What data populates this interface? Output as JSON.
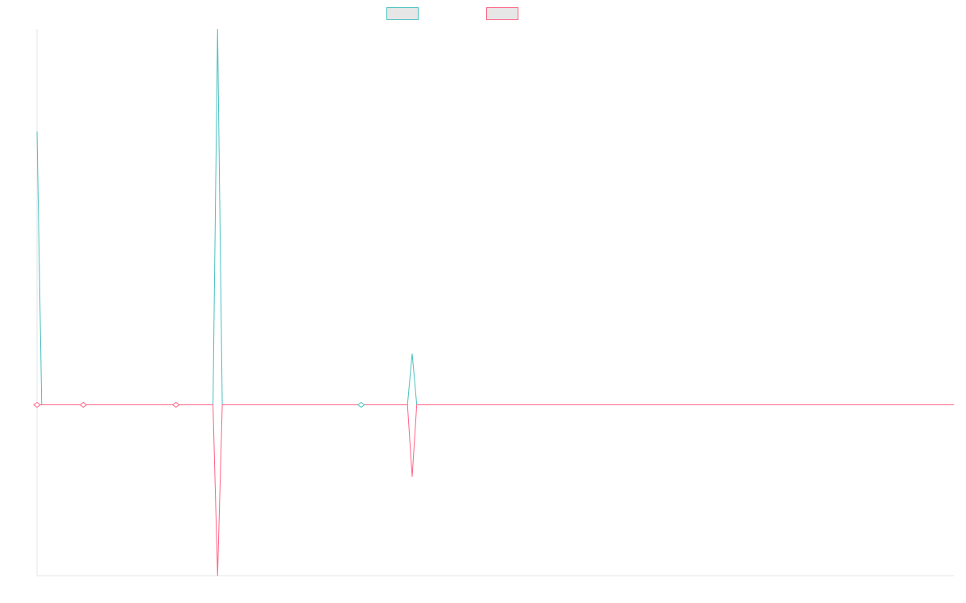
{
  "chart_data": {
    "type": "line",
    "legend_position": "top-center",
    "grid": false,
    "x_range": [
      0,
      198
    ],
    "ylim": [
      -1,
      2.2
    ],
    "series": [
      {
        "color": "#4bc0c0",
        "fill": "#e6e6e6",
        "points": [
          [
            0,
            1.6
          ],
          [
            1,
            0
          ],
          [
            38,
            0
          ],
          [
            39,
            2.2
          ],
          [
            40,
            0
          ],
          [
            80,
            0
          ],
          [
            81,
            0.3
          ],
          [
            82,
            0
          ],
          [
            198,
            0
          ]
        ]
      },
      {
        "color": "#ff6384",
        "fill": "#e6e6e6",
        "points": [
          [
            0,
            0
          ],
          [
            1,
            0
          ],
          [
            38,
            0
          ],
          [
            39,
            -1.0
          ],
          [
            40,
            0
          ],
          [
            80,
            0
          ],
          [
            81,
            -0.42
          ],
          [
            82,
            0
          ],
          [
            198,
            0
          ]
        ]
      }
    ],
    "point_markers": [
      {
        "series": 1,
        "x": 0,
        "y": 0
      },
      {
        "series": 1,
        "x": 10,
        "y": 0
      },
      {
        "series": 1,
        "x": 30,
        "y": 0
      },
      {
        "series": 0,
        "x": 70,
        "y": 0
      }
    ]
  }
}
